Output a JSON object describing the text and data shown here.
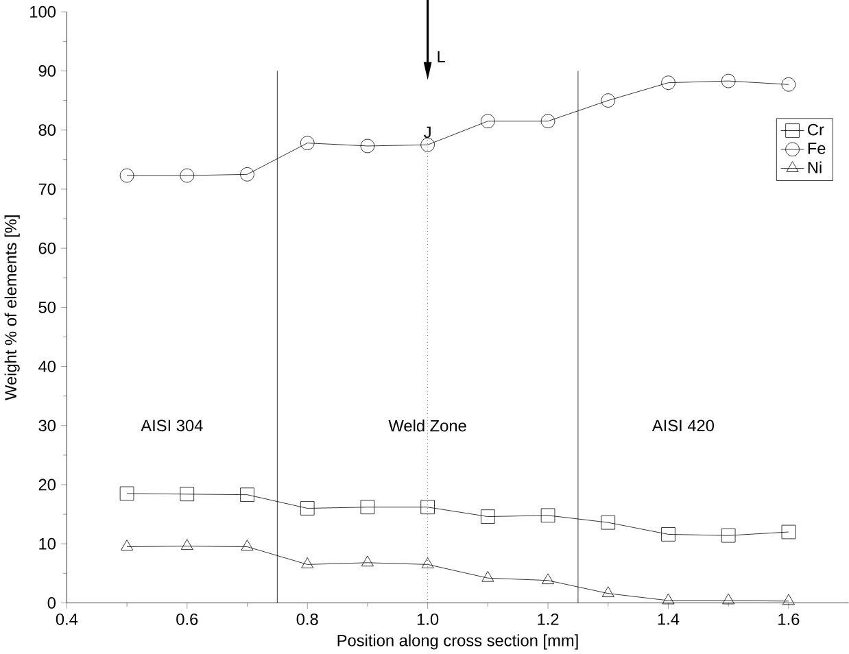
{
  "chart_data": {
    "type": "line",
    "xlabel": "Position along cross section [mm]",
    "ylabel": "Weight % of elements [%]",
    "x": [
      0.5,
      0.6,
      0.7,
      0.8,
      0.9,
      1.0,
      1.1,
      1.2,
      1.3,
      1.4,
      1.5,
      1.6
    ],
    "series": [
      {
        "name": "Cr",
        "color": "#000000",
        "marker": "square",
        "values": [
          18.5,
          18.4,
          18.3,
          16.0,
          16.2,
          16.2,
          14.6,
          14.8,
          13.6,
          11.6,
          11.4,
          12.0
        ]
      },
      {
        "name": "Fe",
        "color": "#000000",
        "marker": "circle",
        "values": [
          72.3,
          72.3,
          72.5,
          77.8,
          77.3,
          77.5,
          81.5,
          81.5,
          85.0,
          88.0,
          88.3,
          87.7
        ]
      },
      {
        "name": "Ni",
        "color": "#000000",
        "marker": "triangle",
        "values": [
          9.5,
          9.6,
          9.5,
          6.5,
          6.8,
          6.5,
          4.2,
          3.8,
          1.6,
          0.4,
          0.4,
          0.3
        ]
      }
    ],
    "xlim": [
      0.4,
      1.7
    ],
    "xticks": [
      {
        "value": 0.4,
        "label": "0.4"
      },
      {
        "value": 0.6,
        "label": "0.6"
      },
      {
        "value": 0.8,
        "label": "0.8"
      },
      {
        "value": 1.0,
        "label": "1.0"
      },
      {
        "value": 1.2,
        "label": "1.2"
      },
      {
        "value": 1.4,
        "label": "1.4"
      },
      {
        "value": 1.6,
        "label": "1.6"
      }
    ],
    "ylim": [
      0,
      100
    ],
    "yticks": [
      0,
      10,
      20,
      30,
      40,
      50,
      60,
      70,
      80,
      90,
      100
    ],
    "ref_lines": [
      {
        "axis": "x",
        "value": 0.75,
        "line_style": "solid"
      },
      {
        "axis": "x",
        "value": 1.25,
        "line_style": "solid"
      },
      {
        "axis": "x",
        "value": 1.0,
        "line_style": "dotted",
        "label": "J"
      }
    ],
    "annotations": [
      "AISI 304",
      "Weld Zone",
      "AISI 420",
      "L"
    ],
    "grid": false,
    "legend": "top right",
    "line_style": "solid"
  }
}
